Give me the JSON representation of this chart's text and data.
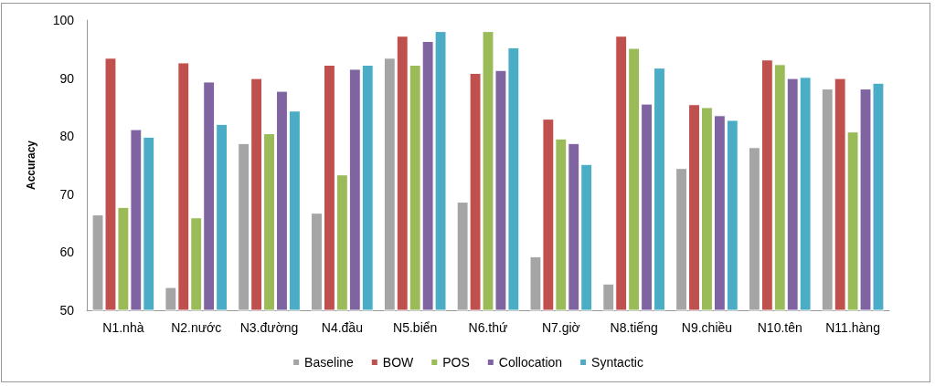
{
  "chart_data": {
    "type": "bar",
    "ylabel": "Accuracy",
    "categories": [
      "N1.nhà",
      "N2.nước",
      "N3.đường",
      "N4.đầu",
      "N5.biển",
      "N6.thứ",
      "N7.giờ",
      "N8.tiếng",
      "N9.chiều",
      "N10.tên",
      "N11.hàng"
    ],
    "series": [
      {
        "name": "Baseline",
        "color": "#a5a5a5",
        "values": [
          66.5,
          54,
          78.8,
          66.8,
          93.5,
          68.7,
          59.3,
          54.6,
          74.5,
          78.1,
          88.2
        ]
      },
      {
        "name": "BOW",
        "color": "#c0504d",
        "values": [
          93.5,
          92.7,
          90,
          92.3,
          97.3,
          90.9,
          83,
          97.3,
          85.5,
          93.2,
          90
        ]
      },
      {
        "name": "POS",
        "color": "#9bbb59",
        "values": [
          67.8,
          66,
          80.5,
          73.4,
          92.3,
          98.1,
          79.6,
          95.2,
          85,
          92.4,
          80.8
        ]
      },
      {
        "name": "Collocation",
        "color": "#8064a2",
        "values": [
          81.2,
          89.4,
          87.8,
          91.6,
          96.4,
          91.4,
          78.8,
          85.6,
          83.6,
          90,
          88.2
        ]
      },
      {
        "name": "Syntactic",
        "color": "#4bacc6",
        "values": [
          79.9,
          82.1,
          84.4,
          92.3,
          98.1,
          95.3,
          75.2,
          91.8,
          82.8,
          90.2,
          89.2
        ]
      }
    ],
    "ylim": [
      50,
      100
    ],
    "yticks": [
      50,
      60,
      70,
      80,
      90,
      100
    ],
    "grid": false,
    "legend": "bottom"
  }
}
